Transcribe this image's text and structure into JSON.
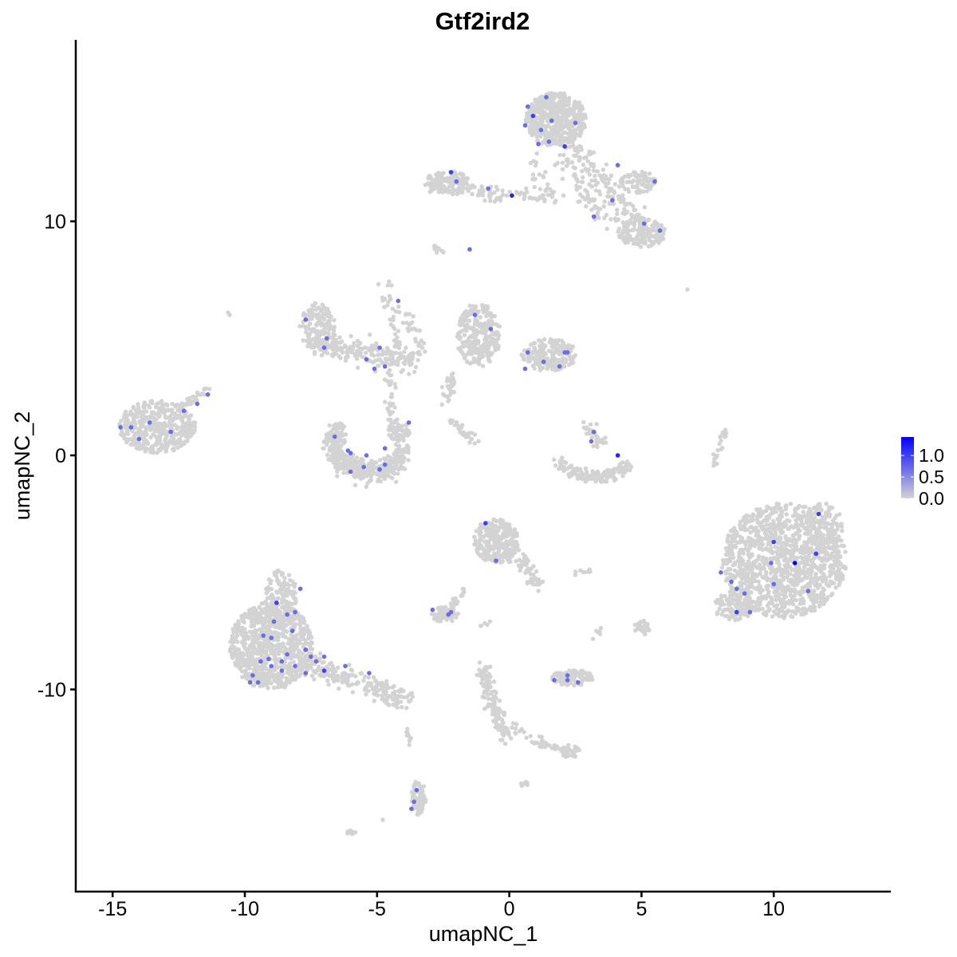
{
  "chart_data": {
    "type": "scatter",
    "title": "Gtf2ird2",
    "xlabel": "umapNC_1",
    "ylabel": "umapNC_2",
    "xlim": [
      -16.4,
      14.4
    ],
    "ylim": [
      -18.6,
      17.8
    ],
    "x_ticks": [
      -15,
      -10,
      -5,
      0,
      5,
      10
    ],
    "y_ticks": [
      -10,
      0,
      10
    ],
    "x_tick_labels": [
      "-15",
      "-10",
      "-5",
      "0",
      "5",
      "10"
    ],
    "y_tick_labels": [
      "-10",
      "0",
      "10"
    ],
    "grid": false,
    "legend": {
      "placement": "right",
      "type": "colorbar",
      "range": [
        0,
        1.43
      ],
      "ticks": [
        0.0,
        0.5,
        1.0
      ],
      "tick_labels": [
        "0.0",
        "0.5",
        "1.0"
      ]
    },
    "colors": {
      "low": "#d3d3d3",
      "high": "#0000ff"
    },
    "background_points_note_value": 0,
    "expressing_cells": [
      [
        0.7,
        14.9,
        0.7
      ],
      [
        0.9,
        14.5,
        1.0
      ],
      [
        0.6,
        14.1,
        0.7
      ],
      [
        1.4,
        15.3,
        0.7
      ],
      [
        1.2,
        13.9,
        0.7
      ],
      [
        1.6,
        14.3,
        0.7
      ],
      [
        2.1,
        13.2,
        1.0
      ],
      [
        2.5,
        14.2,
        0.7
      ],
      [
        1.5,
        13.4,
        0.7
      ],
      [
        1.1,
        13.3,
        0.7
      ],
      [
        -2.2,
        12.1,
        1.0
      ],
      [
        -2.0,
        11.7,
        0.7
      ],
      [
        -0.8,
        11.4,
        0.7
      ],
      [
        0.1,
        11.1,
        1.2
      ],
      [
        4.1,
        12.4,
        0.7
      ],
      [
        5.5,
        11.7,
        0.7
      ],
      [
        3.9,
        10.9,
        0.7
      ],
      [
        3.2,
        10.2,
        0.7
      ],
      [
        5.1,
        9.9,
        0.7
      ],
      [
        5.7,
        9.6,
        0.7
      ],
      [
        -1.5,
        8.8,
        0.7
      ],
      [
        -4.2,
        6.6,
        0.7
      ],
      [
        -7.7,
        5.8,
        0.7
      ],
      [
        -6.9,
        5.0,
        0.7
      ],
      [
        -7.0,
        4.6,
        0.7
      ],
      [
        -4.9,
        4.6,
        0.7
      ],
      [
        -5.4,
        4.1,
        0.7
      ],
      [
        -5.1,
        3.7,
        0.7
      ],
      [
        -4.7,
        3.8,
        0.7
      ],
      [
        -1.3,
        6.0,
        0.7
      ],
      [
        -0.7,
        5.4,
        0.7
      ],
      [
        0.7,
        4.4,
        0.7
      ],
      [
        1.3,
        4.0,
        0.7
      ],
      [
        0.6,
        3.7,
        0.7
      ],
      [
        2.1,
        4.4,
        0.7
      ],
      [
        2.2,
        4.4,
        0.7
      ],
      [
        1.9,
        3.8,
        0.7
      ],
      [
        -12.3,
        1.9,
        0.7
      ],
      [
        -11.4,
        2.6,
        0.7
      ],
      [
        -11.8,
        2.2,
        0.7
      ],
      [
        -14.7,
        1.2,
        0.7
      ],
      [
        -14.3,
        1.2,
        0.7
      ],
      [
        -13.6,
        1.4,
        0.7
      ],
      [
        -14.0,
        0.7,
        0.7
      ],
      [
        -12.8,
        1.0,
        0.7
      ],
      [
        -6.6,
        0.8,
        0.7
      ],
      [
        -6.1,
        0.2,
        0.7
      ],
      [
        -6.0,
        0.1,
        0.7
      ],
      [
        -5.4,
        0.0,
        0.7
      ],
      [
        -4.7,
        0.3,
        0.7
      ],
      [
        -3.8,
        1.4,
        0.7
      ],
      [
        -6.0,
        -0.7,
        0.7
      ],
      [
        -5.5,
        -0.5,
        0.7
      ],
      [
        -4.9,
        -0.6,
        0.7
      ],
      [
        -4.7,
        -0.4,
        0.7
      ],
      [
        3.2,
        1.0,
        0.7
      ],
      [
        3.1,
        0.6,
        0.7
      ],
      [
        4.1,
        0.0,
        1.2
      ],
      [
        -0.9,
        -2.9,
        1.0
      ],
      [
        -0.5,
        -4.5,
        0.7
      ],
      [
        11.7,
        -2.5,
        1.0
      ],
      [
        10.0,
        -3.7,
        1.0
      ],
      [
        11.6,
        -4.2,
        1.0
      ],
      [
        10.8,
        -4.6,
        1.43
      ],
      [
        9.9,
        -4.6,
        0.7
      ],
      [
        8.0,
        -5.0,
        0.7
      ],
      [
        8.4,
        -5.4,
        0.7
      ],
      [
        8.6,
        -5.7,
        0.7
      ],
      [
        8.9,
        -5.9,
        0.7
      ],
      [
        10.0,
        -5.5,
        0.7
      ],
      [
        11.3,
        -5.8,
        0.7
      ],
      [
        8.6,
        -6.7,
        1.0
      ],
      [
        9.1,
        -6.7,
        0.7
      ],
      [
        -8.8,
        -6.3,
        1.0
      ],
      [
        -8.4,
        -6.8,
        0.7
      ],
      [
        -8.1,
        -6.7,
        0.7
      ],
      [
        -7.9,
        -5.7,
        0.7
      ],
      [
        -8.9,
        -7.1,
        0.7
      ],
      [
        -9.0,
        -7.8,
        0.7
      ],
      [
        -9.3,
        -7.7,
        0.7
      ],
      [
        -9.4,
        -8.8,
        0.7
      ],
      [
        -9.1,
        -8.7,
        0.7
      ],
      [
        -9.7,
        -9.4,
        0.7
      ],
      [
        -9.8,
        -9.7,
        0.7
      ],
      [
        -9.5,
        -9.7,
        0.7
      ],
      [
        -8.6,
        -8.8,
        0.7
      ],
      [
        -8.4,
        -8.5,
        0.7
      ],
      [
        -8.1,
        -9.0,
        0.7
      ],
      [
        -7.7,
        -8.3,
        0.7
      ],
      [
        -7.5,
        -8.6,
        0.7
      ],
      [
        -7.3,
        -8.8,
        0.7
      ],
      [
        -7.0,
        -9.2,
        1.0
      ],
      [
        -7.7,
        -9.3,
        0.7
      ],
      [
        -5.3,
        -9.3,
        0.7
      ],
      [
        -6.2,
        -9.0,
        0.7
      ],
      [
        -8.6,
        -9.2,
        0.7
      ],
      [
        -9.0,
        -9.0,
        0.7
      ],
      [
        -7.0,
        -8.6,
        0.7
      ],
      [
        -8.2,
        -7.5,
        0.7
      ],
      [
        -2.2,
        -6.7,
        0.7
      ],
      [
        -2.3,
        -6.8,
        0.7
      ],
      [
        -2.9,
        -6.6,
        0.7
      ],
      [
        1.7,
        -9.6,
        0.7
      ],
      [
        2.2,
        -9.4,
        0.7
      ],
      [
        2.2,
        -9.6,
        0.7
      ],
      [
        2.6,
        -9.7,
        0.7
      ],
      [
        -3.5,
        -14.3,
        0.7
      ],
      [
        -3.6,
        -14.8,
        0.7
      ],
      [
        -3.7,
        -15.1,
        0.7
      ]
    ]
  }
}
